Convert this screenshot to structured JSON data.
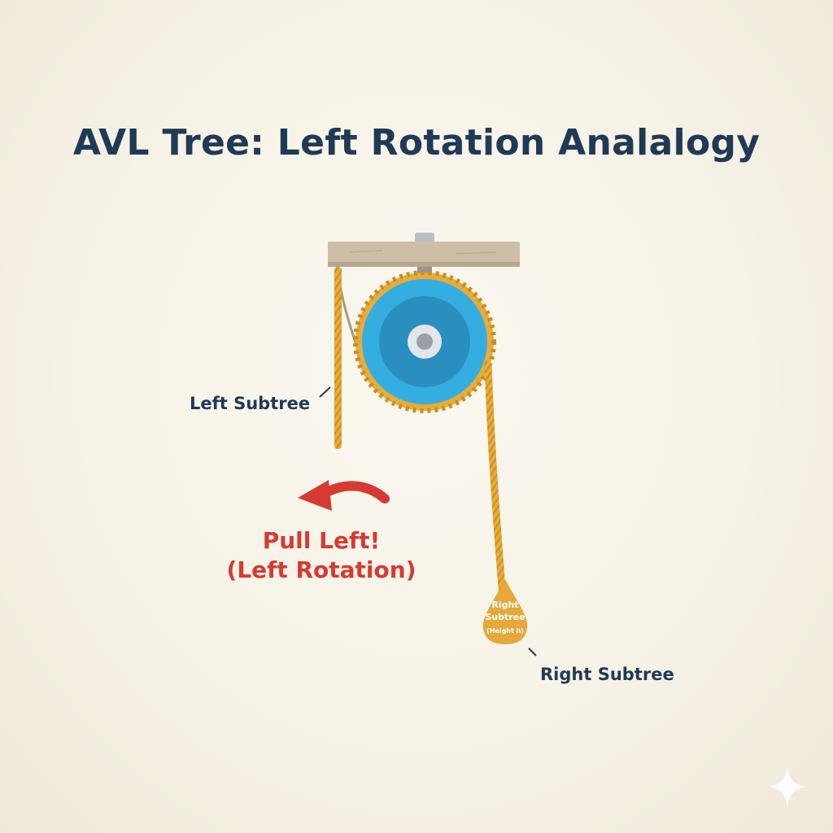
{
  "title": "AVL Tree: Left Rotation Analalogy",
  "labels": {
    "left_subtree": "Left Subtree",
    "right_subtree": "Right Subtree"
  },
  "action": {
    "line1": "Pull Left!",
    "line2": "(Left Rotation)"
  },
  "weight": {
    "line1": "Right",
    "line2": "Subtree",
    "line3": "(Height h)"
  },
  "colors": {
    "title": "#1f3a55",
    "action": "#d63a32",
    "pulley_outer": "#34aee0",
    "pulley_inner": "#2a8fbf",
    "rope": "#e8ac3a",
    "beam": "#cdbfa6",
    "weight": "#e4a93a"
  },
  "icons": [
    "pulley-icon",
    "curved-arrow-left-icon",
    "sparkle-icon"
  ]
}
